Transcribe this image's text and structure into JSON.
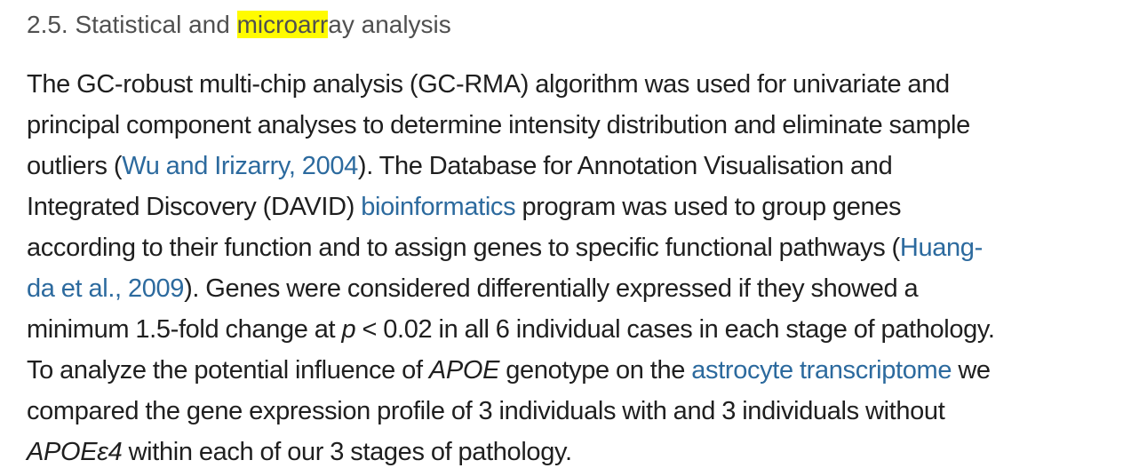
{
  "section": {
    "number": "2.5.",
    "title_before": "Statistical and",
    "title_highlight": "microarr",
    "title_after": "ay analysis"
  },
  "paragraph": {
    "l1": "The GC-robust multi-chip analysis (GC-RMA) algorithm was used for univariate and",
    "l2": "principal component analyses to determine intensity distribution and eliminate sample",
    "l3_a": "outliers (",
    "l3_link": "Wu and Irizarry, 2004",
    "l3_b": "). The Database for Annotation Visualisation and",
    "l4_a": "Integrated Discovery (DAVID)",
    "l4_link": "bioinformatics",
    "l4_b": "program was used to group genes",
    "l5_a": "according to their function and to assign genes to specific functional pathways (",
    "l5_link": "Huang-",
    "l6_link": "da et al., 2009",
    "l6_b": "). Genes were considered differentially expressed if they showed a",
    "l7_a": "minimum 1.5-fold change at",
    "l7_p": "p",
    "l7_b": "< 0.02 in all 6 individual cases in each stage of pathology.",
    "l8_a": "To analyze the potential influence of",
    "l8_apoe": "APOE",
    "l8_b": "genotype on the",
    "l8_link": "astrocyte transcriptome",
    "l8_c": "we",
    "l9": "compared the gene expression profile of 3 individuals with and 3 individuals without",
    "l10_apoe": "APOEε4",
    "l10_b": "within each of our 3 stages of pathology."
  }
}
